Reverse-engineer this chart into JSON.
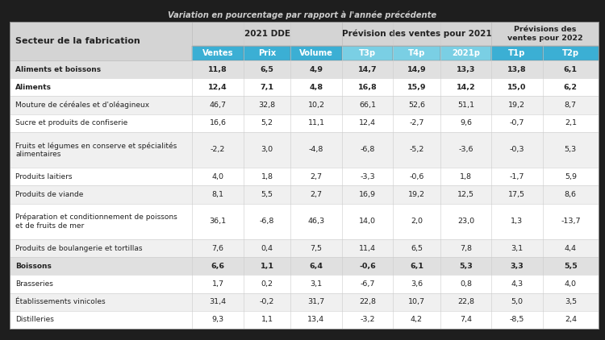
{
  "title": "Variation en pourcentage par rapport à l'année précédente",
  "header_bg_dark": "#3bafd4",
  "header_bg_light": "#7acfe4",
  "header_section_bg": "#d4d4d4",
  "row_bg_bold": "#e0e0e0",
  "row_bg_white": "#ffffff",
  "row_bg_alt": "#f0f0f0",
  "outer_bg": "#1a1a1a",
  "col_header_row2_labels": [
    "Ventes",
    "Prix",
    "Volume",
    "T3p",
    "T4p",
    "2021p",
    "T1p",
    "T2p"
  ],
  "col_header_row2_colors": [
    "#3bafd4",
    "#3bafd4",
    "#3bafd4",
    "#7acfe4",
    "#7acfe4",
    "#7acfe4",
    "#3bafd4",
    "#3bafd4"
  ],
  "group_labels": [
    "2021 DDE",
    "Prévision des ventes pour 2021",
    "Prévisions des\nventes pour 2022"
  ],
  "rows": [
    {
      "label": "Aliments et boissons",
      "values": [
        "11,8",
        "6,5",
        "4,9",
        "14,7",
        "14,9",
        "13,3",
        "13,8",
        "6,1"
      ],
      "bold": true,
      "bg": "#e0e0e0"
    },
    {
      "label": "Aliments",
      "values": [
        "12,4",
        "7,1",
        "4,8",
        "16,8",
        "15,9",
        "14,2",
        "15,0",
        "6,2"
      ],
      "bold": true,
      "bg": "#ffffff"
    },
    {
      "label": "Mouture de céréales et d'oléagineux",
      "values": [
        "46,7",
        "32,8",
        "10,2",
        "66,1",
        "52,6",
        "51,1",
        "19,2",
        "8,7"
      ],
      "bold": false,
      "bg": "#f0f0f0"
    },
    {
      "label": "Sucre et produits de confiserie",
      "values": [
        "16,6",
        "5,2",
        "11,1",
        "12,4",
        "-2,7",
        "9,6",
        "-0,7",
        "2,1"
      ],
      "bold": false,
      "bg": "#ffffff"
    },
    {
      "label": "Fruits et légumes en conserve et spécialités\nalimentaires",
      "values": [
        "-2,2",
        "3,0",
        "-4,8",
        "-6,8",
        "-5,2",
        "-3,6",
        "-0,3",
        "5,3"
      ],
      "bold": false,
      "bg": "#f0f0f0"
    },
    {
      "label": "Produits laitiers",
      "values": [
        "4,0",
        "1,8",
        "2,7",
        "-3,3",
        "-0,6",
        "1,8",
        "-1,7",
        "5,9"
      ],
      "bold": false,
      "bg": "#ffffff"
    },
    {
      "label": "Produits de viande",
      "values": [
        "8,1",
        "5,5",
        "2,7",
        "16,9",
        "19,2",
        "12,5",
        "17,5",
        "8,6"
      ],
      "bold": false,
      "bg": "#f0f0f0"
    },
    {
      "label": "Préparation et conditionnement de poissons\net de fruits de mer",
      "values": [
        "36,1",
        "-6,8",
        "46,3",
        "14,0",
        "2,0",
        "23,0",
        "1,3",
        "-13,7"
      ],
      "bold": false,
      "bg": "#ffffff"
    },
    {
      "label": "Produits de boulangerie et tortillas",
      "values": [
        "7,6",
        "0,4",
        "7,5",
        "11,4",
        "6,5",
        "7,8",
        "3,1",
        "4,4"
      ],
      "bold": false,
      "bg": "#f0f0f0"
    },
    {
      "label": "Boissons",
      "values": [
        "6,6",
        "1,1",
        "6,4",
        "-0,6",
        "6,1",
        "5,3",
        "3,3",
        "5,5"
      ],
      "bold": true,
      "bg": "#e0e0e0"
    },
    {
      "label": "Brasseries",
      "values": [
        "1,7",
        "0,2",
        "3,1",
        "-6,7",
        "3,6",
        "0,8",
        "4,3",
        "4,0"
      ],
      "bold": false,
      "bg": "#ffffff"
    },
    {
      "label": "Établissements vinicoles",
      "values": [
        "31,4",
        "-0,2",
        "31,7",
        "22,8",
        "10,7",
        "22,8",
        "5,0",
        "3,5"
      ],
      "bold": false,
      "bg": "#f0f0f0"
    },
    {
      "label": "Distilleries",
      "values": [
        "9,3",
        "1,1",
        "13,4",
        "-3,2",
        "4,2",
        "7,4",
        "-8,5",
        "2,4"
      ],
      "bold": false,
      "bg": "#ffffff"
    }
  ]
}
